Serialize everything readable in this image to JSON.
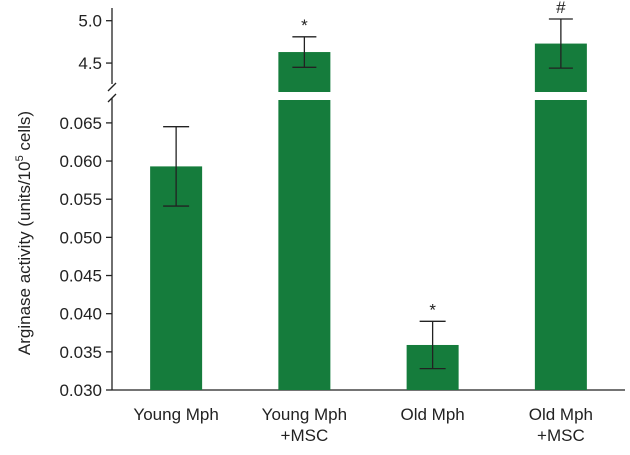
{
  "chart_data": {
    "type": "bar",
    "title": "",
    "xlabel": "",
    "ylabel": "Arginase activity (units/10",
    "ylabel_superscript": "5",
    "ylabel_suffix": " cells)",
    "y_axis_break": true,
    "ylim_lower": [
      0.03,
      0.068
    ],
    "ylim_upper": [
      4.3,
      5.15
    ],
    "lower_ticks": [
      "0.030",
      "0.035",
      "0.040",
      "0.045",
      "0.050",
      "0.055",
      "0.060",
      "0.065"
    ],
    "upper_ticks": [
      "4.5",
      "5.0"
    ],
    "bar_color": "#157c3c",
    "categories": [
      [
        "Young Mph"
      ],
      [
        "Young Mph",
        "+MSC"
      ],
      [
        "Old Mph"
      ],
      [
        "Old Mph",
        "+MSC"
      ]
    ],
    "values": [
      0.0593,
      4.63,
      0.0359,
      4.73
    ],
    "error": [
      0.0052,
      0.18,
      0.0031,
      0.29
    ],
    "annotations": [
      "",
      "*",
      "*",
      "#"
    ]
  }
}
